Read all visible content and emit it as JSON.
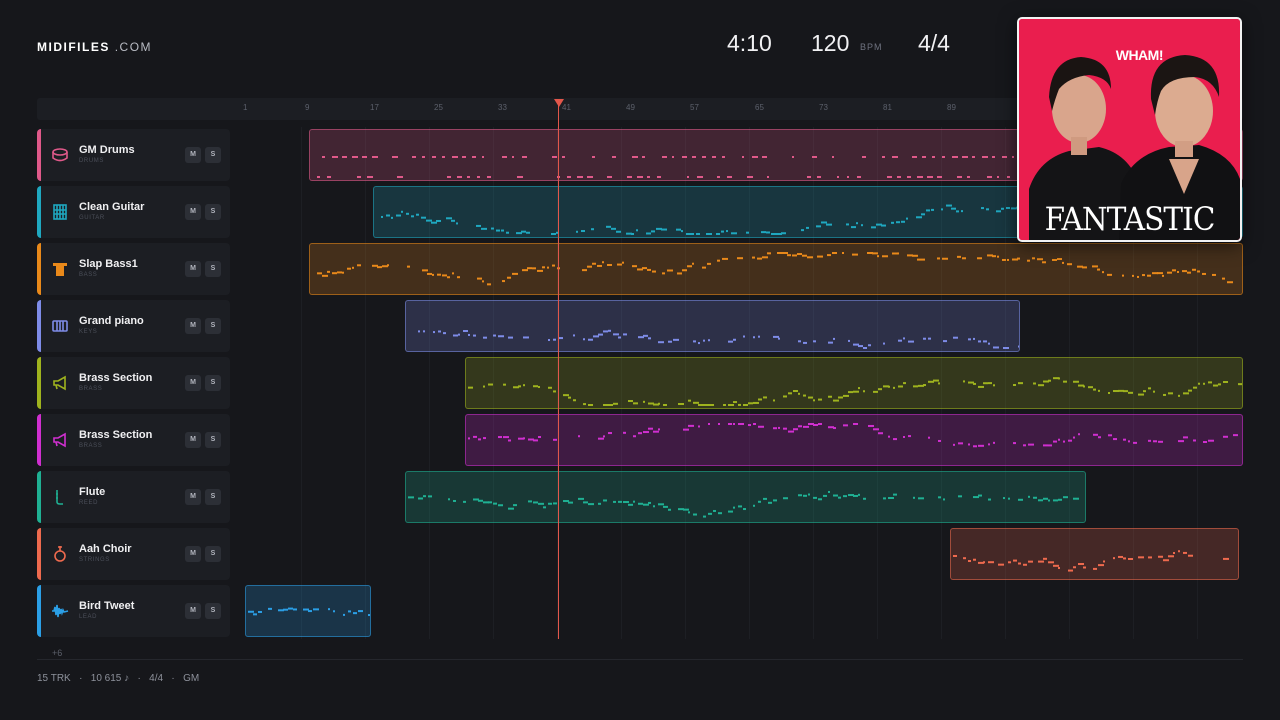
{
  "brand": {
    "name": "MIDIFILES",
    "suffix": ".COM"
  },
  "stats": {
    "duration": "4:10",
    "bpm": "120",
    "bpm_unit": "BPM",
    "time_signature": "4/4"
  },
  "ruler_ticks": [
    "1",
    "9",
    "17",
    "25",
    "33",
    "41",
    "49",
    "57",
    "65",
    "73",
    "81",
    "89"
  ],
  "playhead_bar": 41,
  "tracks": [
    {
      "name": "GM Drums",
      "category": "DRUMS",
      "color": "#e0598a",
      "icon": "drum-icon",
      "mute": "M",
      "solo": "S"
    },
    {
      "name": "Clean Guitar",
      "category": "GUITAR",
      "color": "#1fa8c0",
      "icon": "guitar-icon",
      "mute": "M",
      "solo": "S"
    },
    {
      "name": "Slap Bass1",
      "category": "BASS",
      "color": "#e9891a",
      "icon": "bass-icon",
      "mute": "M",
      "solo": "S"
    },
    {
      "name": "Grand piano",
      "category": "KEYS",
      "color": "#7e8ce8",
      "icon": "piano-icon",
      "mute": "M",
      "solo": "S"
    },
    {
      "name": "Brass Section",
      "category": "BRASS",
      "color": "#9fb31e",
      "icon": "horn-icon",
      "mute": "M",
      "solo": "S"
    },
    {
      "name": "Brass Section",
      "category": "BRASS",
      "color": "#d02fd0",
      "icon": "horn-icon",
      "mute": "M",
      "solo": "S"
    },
    {
      "name": "Flute",
      "category": "REED",
      "color": "#1fb093",
      "icon": "flute-icon",
      "mute": "M",
      "solo": "S"
    },
    {
      "name": "Aah Choir",
      "category": "STRINGS",
      "color": "#ee6a4e",
      "icon": "choir-icon",
      "mute": "M",
      "solo": "S"
    },
    {
      "name": "Bird Tweet",
      "category": "LEAD",
      "color": "#2b9fe6",
      "icon": "waveform-icon",
      "mute": "M",
      "solo": "S"
    }
  ],
  "more_tracks": "+6",
  "footer": {
    "tracks": "15 TRK",
    "notes": "10 615 ♪",
    "time_signature": "4/4",
    "standard": "GM",
    "separator": "·"
  },
  "album": {
    "artist": "WHAM!",
    "title": "FANTASTIC",
    "background": "#ea1e4e"
  }
}
